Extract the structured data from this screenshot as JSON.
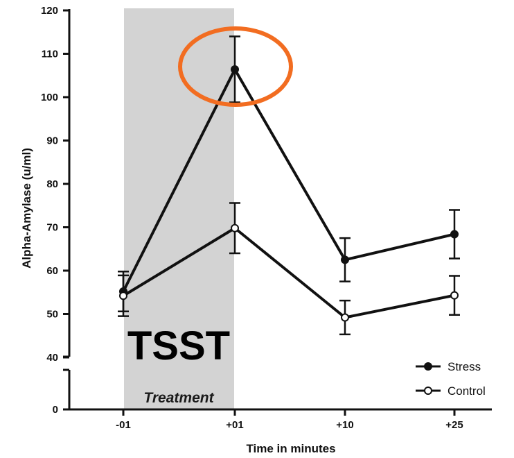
{
  "chart_data": {
    "type": "line",
    "xlabel": "Time in minutes",
    "ylabel": "Alpha-Amylase (u/ml)",
    "categories": [
      "-01",
      "+01",
      "+10",
      "+25"
    ],
    "yticks": [
      0,
      40,
      50,
      60,
      70,
      80,
      90,
      100,
      110,
      120
    ],
    "ylim": [
      40,
      120
    ],
    "axis_break": true,
    "grid": false,
    "legend_position": "bottom-right",
    "series": [
      {
        "name": "Stress",
        "marker": "filled-circle",
        "values": [
          55.2,
          106.4,
          62.5,
          68.4
        ],
        "errors": [
          4.6,
          7.6,
          5.0,
          5.6
        ]
      },
      {
        "name": "Control",
        "marker": "open-circle",
        "values": [
          54.2,
          69.8,
          49.2,
          54.3
        ],
        "errors": [
          4.7,
          5.8,
          3.9,
          4.5
        ]
      }
    ],
    "annotations": {
      "shaded_region": {
        "from": "-01",
        "to": "+01",
        "label": "Treatment"
      },
      "overlay_text": "TSST",
      "highlight_ellipse": {
        "around": "+01",
        "series": "Stress",
        "color": "#f26d21"
      }
    }
  }
}
